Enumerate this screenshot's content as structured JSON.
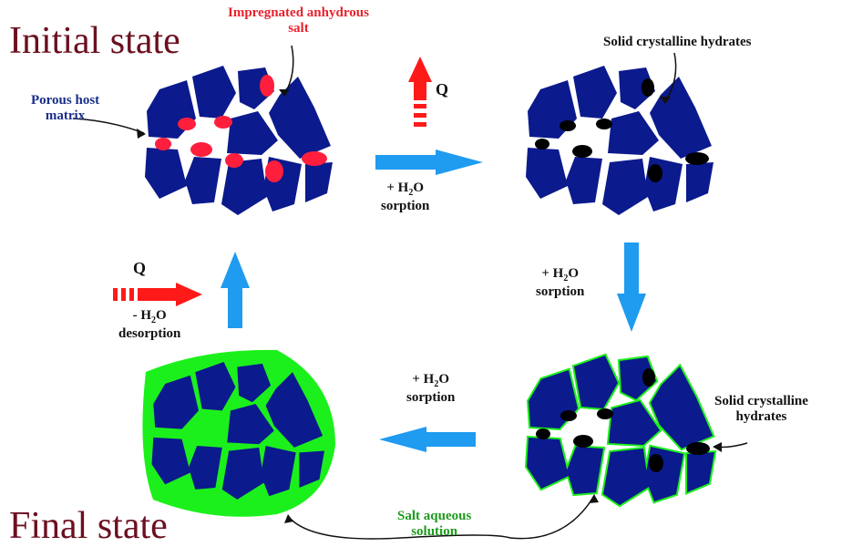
{
  "titles": {
    "initial": "Initial state",
    "final": "Final state"
  },
  "labels": {
    "impregnated_line1": "Impregnated anhydrous",
    "impregnated_line2": "salt",
    "porous_line1": "Porous host",
    "porous_line2": "matrix",
    "solid_hydrates_top": "Solid crystalline hydrates",
    "solid_hydrates_right_line1": "Solid crystalline",
    "solid_hydrates_right_line2": "hydrates",
    "salt_solution_line1": "Salt aqueous",
    "salt_solution_line2": "solution"
  },
  "arrows": {
    "heat": "Q",
    "water_plus": "+ H",
    "water_minus": "- H",
    "water_sub": "2",
    "water_o": "O",
    "sorption": "sorption",
    "desorption": "desorption"
  },
  "colors": {
    "grain": "#0b1a8c",
    "salt": "#ff1f3d",
    "hydrate": "#000000",
    "solution": "#1cf01c",
    "flow_arrow": "#1f9bf0",
    "heat_arrow": "#ff1a1a",
    "title": "#6b1020"
  }
}
